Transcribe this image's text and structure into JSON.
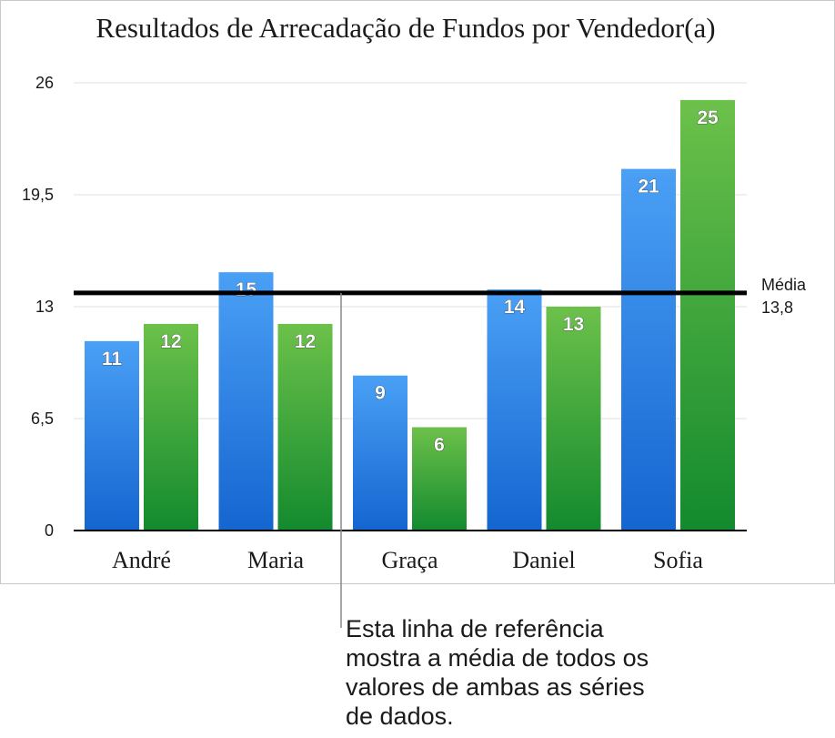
{
  "chart_data": {
    "type": "bar",
    "title": "Resultados de Arrecadação de Fundos por Vendedor(a)",
    "categories": [
      "André",
      "Maria",
      "Graça",
      "Daniel",
      "Sofia"
    ],
    "series": [
      {
        "values": [
          11,
          15,
          9,
          14,
          21
        ],
        "color": "#2f80e8"
      },
      {
        "values": [
          12,
          12,
          6,
          13,
          25
        ],
        "color": "#3ba53a"
      }
    ],
    "yticks": [
      "0",
      "6,5",
      "13",
      "19,5",
      "26"
    ],
    "ylim": [
      0,
      26
    ],
    "grid": true,
    "legend": "none",
    "reference_line": {
      "value": 13.8,
      "label": "Média",
      "value_label": "13,8"
    }
  },
  "callout": {
    "text": "Esta linha de referência mostra a média de todos os valores de ambas as séries de dados."
  }
}
